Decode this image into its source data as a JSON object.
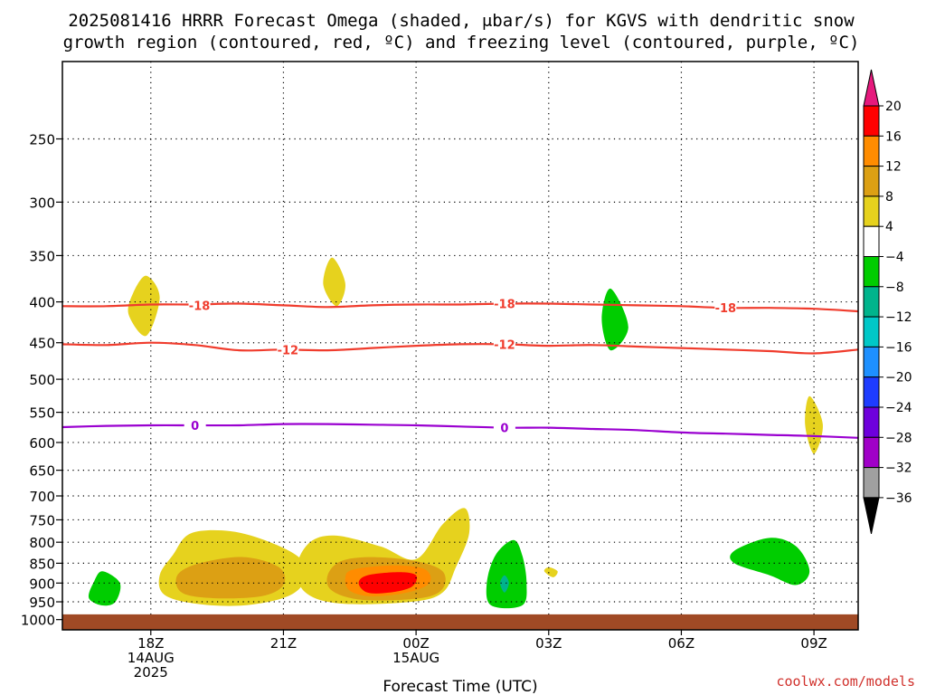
{
  "chart_data": {
    "type": "contour",
    "title_line1": "2025081416 HRRR Forecast Omega (shaded, μbar/s) for KGVS with dendritic snow",
    "title_line2": "growth region (contoured, red, ºC) and freezing level (contoured, purple, ºC)",
    "xlabel": "Forecast Time (UTC)",
    "credit": "coolwx.com/models",
    "x_ticks": [
      {
        "hour": 18,
        "lines": [
          "18Z",
          "14AUG",
          "2025"
        ]
      },
      {
        "hour": 21,
        "lines": [
          "21Z"
        ]
      },
      {
        "hour": 24,
        "lines": [
          "00Z",
          "15AUG"
        ]
      },
      {
        "hour": 27,
        "lines": [
          "03Z"
        ]
      },
      {
        "hour": 30,
        "lines": [
          "06Z"
        ]
      },
      {
        "hour": 33,
        "lines": [
          "09Z"
        ]
      }
    ],
    "xlim": [
      16,
      34
    ],
    "y_ticks": [
      250,
      300,
      350,
      400,
      450,
      500,
      550,
      600,
      650,
      700,
      750,
      800,
      850,
      900,
      950,
      1000
    ],
    "ylim_hpa": [
      200,
      1030
    ],
    "y_scale": "log-pressure",
    "grid": "dotted",
    "colorbar": {
      "labels": [
        "20",
        "16",
        "12",
        "8",
        "4",
        "−4",
        "−8",
        "−12",
        "−16",
        "−20",
        "−24",
        "−28",
        "−32",
        "−36"
      ],
      "bands": [
        "#ff0000",
        "#ff8c00",
        "#dca014",
        "#e6d21e",
        "#ffffff",
        "#00cd00",
        "#00b48c",
        "#00c8c8",
        "#1e90ff",
        "#1e3cff",
        "#6e00dc",
        "#a000c8",
        "#a0a0a0"
      ],
      "top_arrow_color": "#e6197d",
      "bottom_arrow_color": "#000000"
    },
    "series": [
      {
        "name": "-18",
        "color": "#f03c2d",
        "labels": [
          {
            "hour": 19.1,
            "p": 404
          },
          {
            "hour": 26.0,
            "p": 402
          },
          {
            "hour": 31.0,
            "p": 407
          }
        ],
        "points": [
          [
            16,
            405
          ],
          [
            17,
            405
          ],
          [
            18,
            403
          ],
          [
            19,
            403
          ],
          [
            20,
            402
          ],
          [
            21,
            404
          ],
          [
            22,
            406
          ],
          [
            23,
            404
          ],
          [
            24,
            403
          ],
          [
            25,
            403
          ],
          [
            26,
            402
          ],
          [
            27,
            402
          ],
          [
            28,
            403
          ],
          [
            29,
            404
          ],
          [
            30,
            405
          ],
          [
            31,
            407
          ],
          [
            32,
            407
          ],
          [
            33,
            408
          ],
          [
            34,
            411
          ]
        ]
      },
      {
        "name": "-12",
        "color": "#f03c2d",
        "labels": [
          {
            "hour": 21.1,
            "p": 459
          },
          {
            "hour": 26.0,
            "p": 452
          }
        ],
        "points": [
          [
            16,
            452
          ],
          [
            17,
            453
          ],
          [
            18,
            450
          ],
          [
            19,
            453
          ],
          [
            20,
            460
          ],
          [
            21,
            459
          ],
          [
            22,
            460
          ],
          [
            23,
            457
          ],
          [
            24,
            454
          ],
          [
            25,
            452
          ],
          [
            26,
            452
          ],
          [
            27,
            454
          ],
          [
            28,
            453
          ],
          [
            29,
            455
          ],
          [
            30,
            457
          ],
          [
            31,
            459
          ],
          [
            32,
            461
          ],
          [
            33,
            464
          ],
          [
            34,
            459
          ]
        ]
      },
      {
        "name": "0",
        "color": "#9a00d0",
        "labels": [
          {
            "hour": 19.0,
            "p": 571
          },
          {
            "hour": 26.0,
            "p": 575
          }
        ],
        "points": [
          [
            16,
            574
          ],
          [
            17,
            572
          ],
          [
            18,
            571
          ],
          [
            19,
            571
          ],
          [
            20,
            571
          ],
          [
            21,
            569
          ],
          [
            22,
            569
          ],
          [
            23,
            570
          ],
          [
            24,
            571
          ],
          [
            25,
            573
          ],
          [
            26,
            575
          ],
          [
            27,
            575
          ],
          [
            28,
            577
          ],
          [
            29,
            579
          ],
          [
            30,
            583
          ],
          [
            31,
            585
          ],
          [
            32,
            587
          ],
          [
            33,
            589
          ],
          [
            34,
            592
          ]
        ]
      }
    ],
    "shaded": [
      {
        "value": 5,
        "points": [
          [
            18.9,
            780
          ],
          [
            19.8,
            775
          ],
          [
            20.7,
            800
          ],
          [
            21.4,
            840
          ],
          [
            21.5,
            890
          ],
          [
            21.1,
            935
          ],
          [
            20.1,
            960
          ],
          [
            19.0,
            955
          ],
          [
            18.3,
            930
          ],
          [
            18.2,
            880
          ],
          [
            18.5,
            830
          ]
        ]
      },
      {
        "value": 9,
        "points": [
          [
            19.1,
            850
          ],
          [
            20.1,
            835
          ],
          [
            20.9,
            860
          ],
          [
            21.0,
            905
          ],
          [
            20.5,
            935
          ],
          [
            19.4,
            940
          ],
          [
            18.7,
            925
          ],
          [
            18.6,
            880
          ]
        ]
      },
      {
        "value": 5,
        "points": [
          [
            21.6,
            800
          ],
          [
            22.2,
            785
          ],
          [
            23.2,
            810
          ],
          [
            24.0,
            840
          ],
          [
            24.6,
            760
          ],
          [
            25.1,
            725
          ],
          [
            25.2,
            780
          ],
          [
            24.9,
            860
          ],
          [
            24.6,
            925
          ],
          [
            23.9,
            950
          ],
          [
            22.3,
            955
          ],
          [
            21.5,
            925
          ],
          [
            21.3,
            860
          ]
        ]
      },
      {
        "value": 9,
        "points": [
          [
            22.3,
            845
          ],
          [
            23.0,
            835
          ],
          [
            24.0,
            845
          ],
          [
            24.6,
            870
          ],
          [
            24.6,
            915
          ],
          [
            24.1,
            940
          ],
          [
            22.8,
            945
          ],
          [
            22.1,
            920
          ],
          [
            22.0,
            880
          ]
        ]
      },
      {
        "value": 13,
        "points": [
          [
            22.6,
            865
          ],
          [
            23.5,
            855
          ],
          [
            24.2,
            865
          ],
          [
            24.3,
            900
          ],
          [
            23.8,
            925
          ],
          [
            23.0,
            935
          ],
          [
            22.5,
            920
          ],
          [
            22.4,
            885
          ]
        ]
      },
      {
        "value": 17,
        "points": [
          [
            22.9,
            880
          ],
          [
            23.6,
            872
          ],
          [
            24.0,
            880
          ],
          [
            23.9,
            910
          ],
          [
            23.4,
            925
          ],
          [
            22.9,
            925
          ],
          [
            22.7,
            900
          ]
        ]
      },
      {
        "value": 5,
        "points": [
          [
            17.9,
            371
          ],
          [
            18.2,
            395
          ],
          [
            17.9,
            441
          ],
          [
            17.5,
            415
          ],
          [
            17.6,
            390
          ]
        ]
      },
      {
        "value": 5,
        "points": [
          [
            22.1,
            352
          ],
          [
            22.4,
            380
          ],
          [
            22.2,
            405
          ],
          [
            21.9,
            380
          ]
        ]
      },
      {
        "value": 5,
        "points": [
          [
            32.9,
            525
          ],
          [
            33.2,
            570
          ],
          [
            33.0,
            620
          ],
          [
            32.8,
            570
          ]
        ]
      },
      {
        "value": 5,
        "points": [
          [
            27.0,
            860
          ],
          [
            27.2,
            870
          ],
          [
            27.1,
            885
          ],
          [
            26.9,
            870
          ]
        ]
      },
      {
        "value": -5,
        "points": [
          [
            16.9,
            870
          ],
          [
            17.3,
            900
          ],
          [
            17.2,
            950
          ],
          [
            16.9,
            960
          ],
          [
            16.6,
            940
          ],
          [
            16.7,
            900
          ]
        ]
      },
      {
        "value": -5,
        "points": [
          [
            26.2,
            795
          ],
          [
            26.4,
            830
          ],
          [
            26.5,
            900
          ],
          [
            26.4,
            960
          ],
          [
            25.7,
            960
          ],
          [
            25.6,
            900
          ],
          [
            25.8,
            830
          ]
        ]
      },
      {
        "value": -9,
        "points": [
          [
            26.0,
            880
          ],
          [
            26.1,
            900
          ],
          [
            26.0,
            925
          ],
          [
            25.9,
            900
          ]
        ]
      },
      {
        "value": -5,
        "points": [
          [
            28.4,
            385
          ],
          [
            28.8,
            430
          ],
          [
            28.4,
            460
          ],
          [
            28.2,
            420
          ]
        ]
      },
      {
        "value": -5,
        "points": [
          [
            32.0,
            790
          ],
          [
            32.6,
            810
          ],
          [
            32.9,
            870
          ],
          [
            32.6,
            905
          ],
          [
            32.0,
            880
          ],
          [
            31.2,
            850
          ],
          [
            31.2,
            820
          ]
        ]
      }
    ],
    "terrain": {
      "color": "#a04a25",
      "surface_p": 985
    }
  }
}
